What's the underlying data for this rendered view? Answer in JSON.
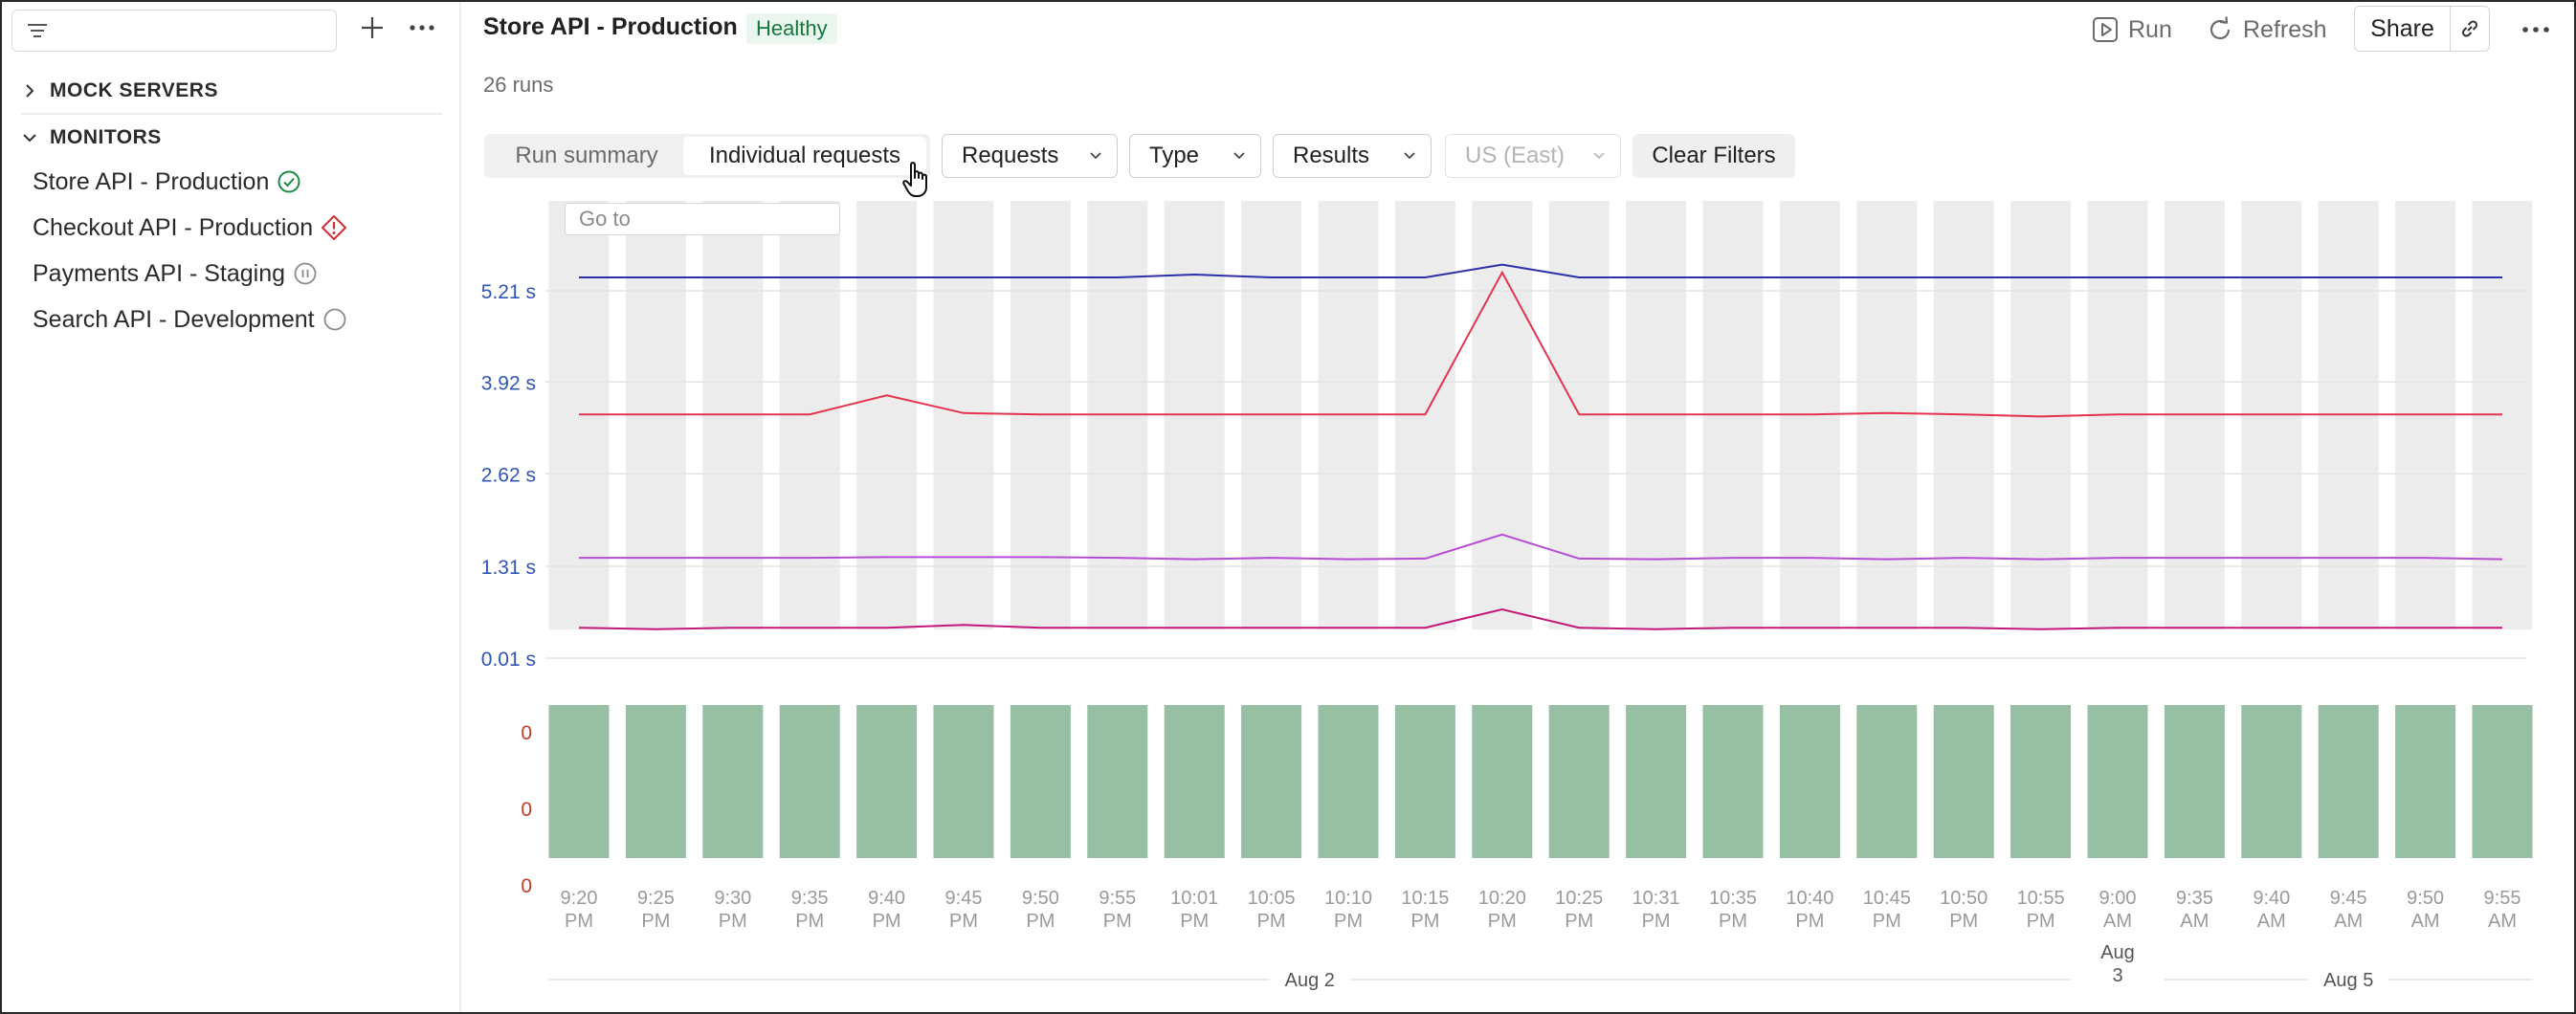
{
  "sidebar": {
    "sections": [
      {
        "label": "MOCK SERVERS",
        "expanded": false
      },
      {
        "label": "MONITORS",
        "expanded": true
      }
    ],
    "monitors": [
      {
        "name": "Store API - Production",
        "status": "healthy"
      },
      {
        "name": "Checkout API - Production",
        "status": "failing"
      },
      {
        "name": "Payments API - Staging",
        "status": "paused"
      },
      {
        "name": "Search API - Development",
        "status": "inactive"
      }
    ]
  },
  "header": {
    "title": "Store API - Production",
    "status": "Healthy",
    "runs": "26 runs",
    "run_label": "Run",
    "refresh_label": "Refresh",
    "share_label": "Share"
  },
  "toolbar": {
    "tabs": [
      "Run summary",
      "Individual requests"
    ],
    "active_tab": "Individual requests",
    "filters": [
      {
        "label": "Requests",
        "disabled": false
      },
      {
        "label": "Type",
        "disabled": false
      },
      {
        "label": "Results",
        "disabled": false
      },
      {
        "label": "US (East)",
        "disabled": true
      }
    ],
    "clear_label": "Clear Filters",
    "goto_placeholder": "Go to"
  },
  "colors": {
    "healthy": "#1a8a45",
    "failing": "#d32f2f",
    "axis_time": "#2f55b5",
    "axis_count": "#c23a2a",
    "bar": "#97bfa3",
    "column_bg": "#ececec"
  },
  "chart_data": {
    "type": "line",
    "y_tick_labels": [
      "0.01 s",
      "1.31 s",
      "2.62 s",
      "3.92 s",
      "5.21 s"
    ],
    "y_ticks": [
      0.01,
      1.31,
      2.62,
      3.92,
      5.21
    ],
    "y_unit": "s",
    "x": [
      "9:20 PM",
      "9:25 PM",
      "9:30 PM",
      "9:35 PM",
      "9:40 PM",
      "9:45 PM",
      "9:50 PM",
      "9:55 PM",
      "10:01 PM",
      "10:05 PM",
      "10:10 PM",
      "10:15 PM",
      "10:20 PM",
      "10:25 PM",
      "10:31 PM",
      "10:35 PM",
      "10:40 PM",
      "10:45 PM",
      "10:50 PM",
      "10:55 PM",
      "9:00 AM",
      "9:35 AM",
      "9:40 AM",
      "9:45 AM",
      "9:50 AM",
      "9:55 AM"
    ],
    "date_labels": [
      {
        "label": "Aug 2",
        "from": 0,
        "to": 19
      },
      {
        "label": "Aug 3",
        "from": 20,
        "to": 20
      },
      {
        "label": "Aug 5",
        "from": 21,
        "to": 25
      }
    ],
    "series": [
      {
        "color": "#2b2fa8",
        "values": [
          5.4,
          5.4,
          5.4,
          5.4,
          5.4,
          5.4,
          5.4,
          5.4,
          5.44,
          5.4,
          5.4,
          5.4,
          5.58,
          5.4,
          5.4,
          5.4,
          5.4,
          5.4,
          5.4,
          5.4,
          5.4,
          5.4,
          5.4,
          5.4,
          5.4,
          5.4
        ]
      },
      {
        "color": "#e5334d",
        "values": [
          3.46,
          3.46,
          3.46,
          3.46,
          3.73,
          3.48,
          3.46,
          3.46,
          3.46,
          3.46,
          3.46,
          3.46,
          5.47,
          3.46,
          3.46,
          3.46,
          3.46,
          3.48,
          3.46,
          3.43,
          3.46,
          3.46,
          3.46,
          3.46,
          3.46,
          3.46
        ]
      },
      {
        "color": "#b64bd6",
        "values": [
          1.43,
          1.43,
          1.43,
          1.43,
          1.44,
          1.44,
          1.44,
          1.43,
          1.41,
          1.43,
          1.41,
          1.42,
          1.76,
          1.42,
          1.41,
          1.43,
          1.43,
          1.41,
          1.43,
          1.41,
          1.43,
          1.43,
          1.43,
          1.43,
          1.43,
          1.41
        ]
      },
      {
        "color": "#c2187a",
        "values": [
          0.44,
          0.42,
          0.44,
          0.44,
          0.44,
          0.48,
          0.44,
          0.44,
          0.44,
          0.44,
          0.44,
          0.44,
          0.7,
          0.44,
          0.42,
          0.44,
          0.44,
          0.44,
          0.44,
          0.42,
          0.44,
          0.44,
          0.44,
          0.44,
          0.44,
          0.44
        ]
      }
    ],
    "count_axis_labels": [
      "0",
      "0",
      "0"
    ],
    "bars": {
      "count": 26
    }
  }
}
